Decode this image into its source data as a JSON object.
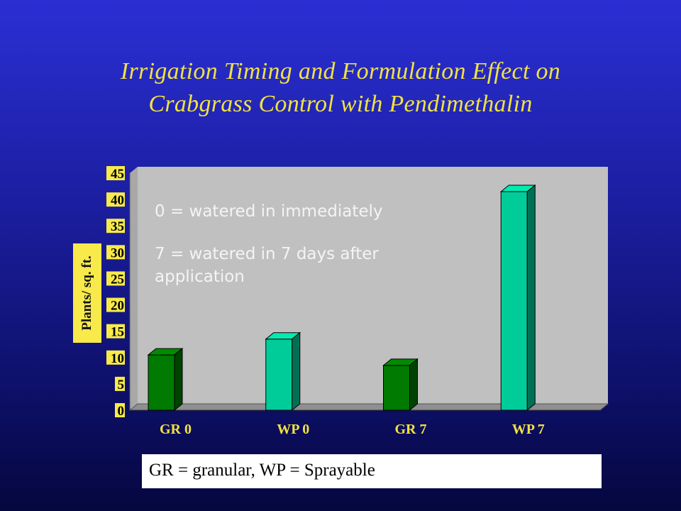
{
  "slide": {
    "title_line1": "Irrigation Timing and Formulation Effect on",
    "title_line2": "Crabgrass Control with Pendimethalin",
    "note1": "0 = watered in immediately",
    "note2": "7 = watered in 7 days after application",
    "footer": "GR = granular, WP = Sprayable"
  },
  "colors": {
    "title": "#f0e242",
    "gr_bar": "#007a00",
    "wp_bar": "#00cc99",
    "plot_bg": "#c0c0c0",
    "tick_label_bg": "#f7ea4a",
    "category_label": "#f0e242"
  },
  "chart_data": {
    "type": "bar",
    "title": "",
    "xlabel": "",
    "ylabel": "Plants/ sq. ft.",
    "categories": [
      "GR 0",
      "WP 0",
      "GR 7",
      "WP 7"
    ],
    "values": [
      10.5,
      13.5,
      8.5,
      41.5
    ],
    "bar_colors": [
      "#007a00",
      "#00cc99",
      "#007a00",
      "#00cc99"
    ],
    "ylim": [
      0,
      45
    ],
    "yticks": [
      "0",
      "5",
      "10",
      "15",
      "20",
      "25",
      "30",
      "35",
      "40",
      "45"
    ],
    "grid": false,
    "legend": "none"
  }
}
